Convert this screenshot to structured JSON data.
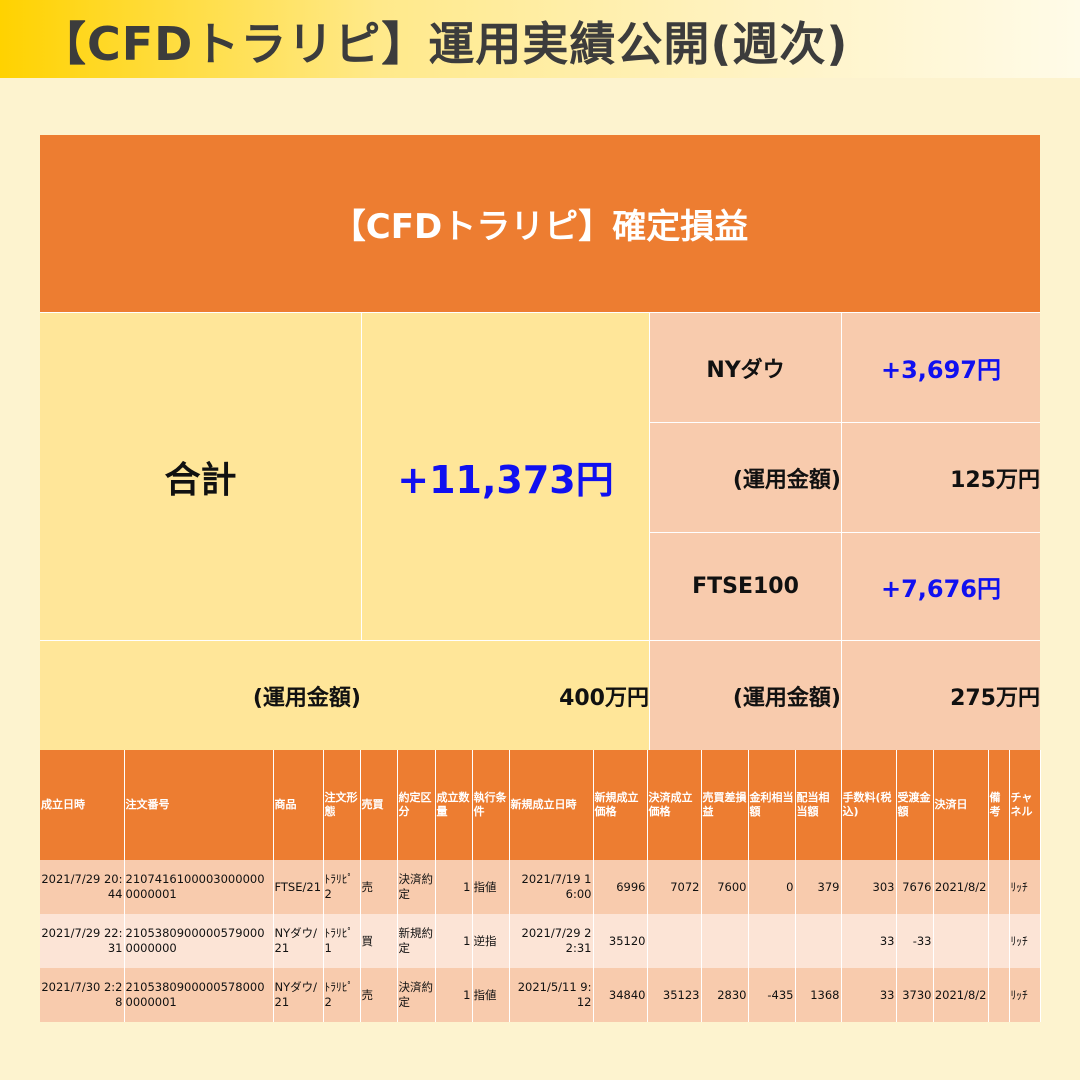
{
  "page": {
    "title": "【CFDトラリピ】運用実績公開(週次)"
  },
  "summary": {
    "header": "【CFDトラリピ】確定損益",
    "total_label": "合計",
    "total_value": "+11,373円",
    "total_fund_label": "(運用金額)",
    "total_fund_value": "400万円",
    "products": [
      {
        "name": "NYダウ",
        "profit": "+3,697円",
        "fund_label": "(運用金額)",
        "fund_value": "125万円"
      },
      {
        "name": "FTSE100",
        "profit": "+7,676円",
        "fund_label": "(運用金額)",
        "fund_value": "275万円"
      }
    ]
  },
  "table": {
    "headers": [
      "成立日時",
      "注文番号",
      "商品",
      "注文形態",
      "売買",
      "約定区分",
      "成立数量",
      "執行条件",
      "新規成立日時",
      "新規成立価格",
      "決済成立価格",
      "売買差損益",
      "金利相当額",
      "配当相当額",
      "手数料(税込)",
      "受渡金額",
      "決済日",
      "備考",
      "チャネル"
    ],
    "rows": [
      [
        "2021/7/29 20:44",
        "21074161000030000000000001",
        "FTSE/21",
        "ﾄﾗﾘﾋﾟ2",
        "売",
        "決済約定",
        "1",
        "指値",
        "2021/7/19 16:00",
        "6996",
        "7072",
        "7600",
        "0",
        "379",
        "303",
        "7676",
        "2021/8/2",
        "",
        "ﾘｯﾁ"
      ],
      [
        "2021/7/29 22:31",
        "21053809000005790000000000",
        "NYダウ/21",
        "ﾄﾗﾘﾋﾟ1",
        "買",
        "新規約定",
        "1",
        "逆指",
        "2021/7/29 22:31",
        "35120",
        "",
        "",
        "",
        "",
        "33",
        "-33",
        "",
        "",
        "ﾘｯﾁ"
      ],
      [
        "2021/7/30 2:28",
        "21053809000005780000000001",
        "NYダウ/21",
        "ﾄﾗﾘﾋﾟ2",
        "売",
        "決済約定",
        "1",
        "指値",
        "2021/5/11 9:12",
        "34840",
        "35123",
        "2830",
        "-435",
        "1368",
        "33",
        "3730",
        "2021/8/2",
        "",
        "ﾘｯﾁ"
      ]
    ]
  }
}
